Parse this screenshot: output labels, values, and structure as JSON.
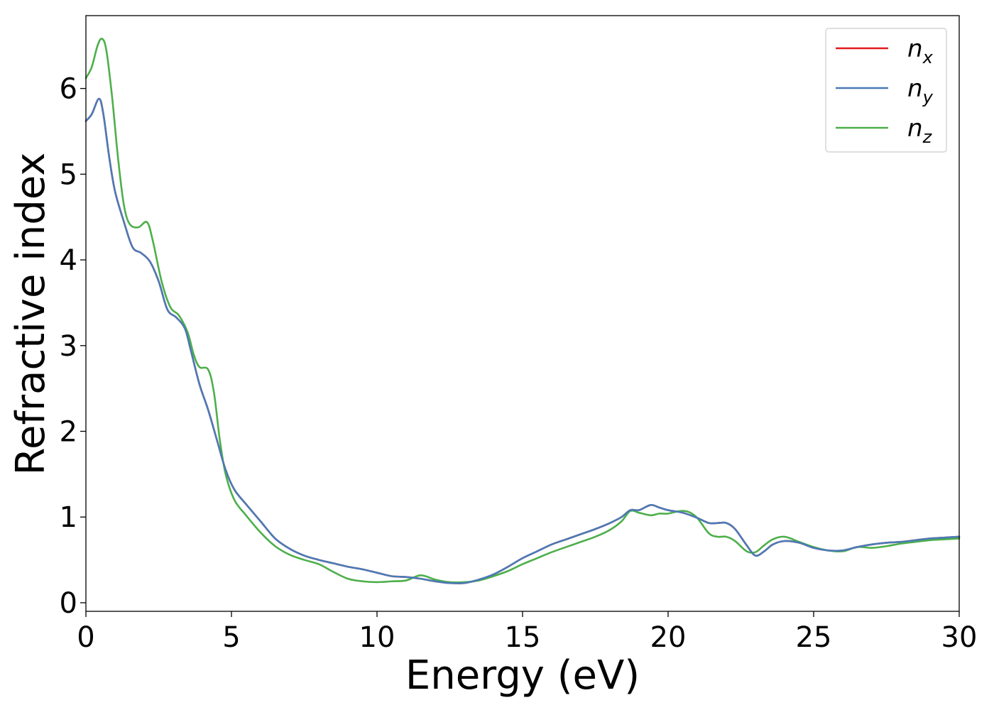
{
  "chart_data": {
    "type": "line",
    "xlabel": "Energy (eV)",
    "ylabel": "Refractive index",
    "xlim": [
      0,
      30
    ],
    "ylim": [
      -0.1,
      6.85
    ],
    "xticks": [
      0,
      5,
      10,
      15,
      20,
      25,
      30
    ],
    "yticks": [
      0,
      1,
      2,
      3,
      4,
      5,
      6
    ],
    "grid": false,
    "legend_position": "top-right",
    "series": [
      {
        "name": "n_x",
        "label_base": "n",
        "label_sub": "x",
        "color": "#e41a1c",
        "x": [
          0,
          0.2,
          0.45,
          0.6,
          0.8,
          1.0,
          1.3,
          1.6,
          1.9,
          2.2,
          2.5,
          2.8,
          3.1,
          3.4,
          3.6,
          3.9,
          4.2,
          4.5,
          4.8,
          5.1,
          5.5,
          6.0,
          6.5,
          7.0,
          7.5,
          8.0,
          8.5,
          9.0,
          9.5,
          10.0,
          10.5,
          11.0,
          11.5,
          12.0,
          12.5,
          13.0,
          13.5,
          14.0,
          14.5,
          15.0,
          15.5,
          16.0,
          16.5,
          17.0,
          17.5,
          18.0,
          18.4,
          18.7,
          19.0,
          19.4,
          19.7,
          20.0,
          20.5,
          21.0,
          21.4,
          21.7,
          22.0,
          22.3,
          22.7,
          23.0,
          23.3,
          23.6,
          24.0,
          24.5,
          25.0,
          25.5,
          26.0,
          26.5,
          27.0,
          27.5,
          28.0,
          28.5,
          29.0,
          29.5,
          30.0
        ],
        "y": [
          5.62,
          5.7,
          5.88,
          5.7,
          5.2,
          4.8,
          4.45,
          4.15,
          4.08,
          3.98,
          3.75,
          3.42,
          3.33,
          3.2,
          2.95,
          2.55,
          2.25,
          1.9,
          1.55,
          1.32,
          1.15,
          0.95,
          0.75,
          0.63,
          0.55,
          0.5,
          0.46,
          0.42,
          0.39,
          0.35,
          0.31,
          0.3,
          0.28,
          0.25,
          0.23,
          0.23,
          0.27,
          0.33,
          0.42,
          0.52,
          0.6,
          0.68,
          0.74,
          0.8,
          0.86,
          0.93,
          1.0,
          1.08,
          1.08,
          1.14,
          1.11,
          1.08,
          1.05,
          0.99,
          0.93,
          0.93,
          0.93,
          0.86,
          0.67,
          0.55,
          0.6,
          0.68,
          0.72,
          0.7,
          0.64,
          0.61,
          0.61,
          0.65,
          0.68,
          0.7,
          0.71,
          0.73,
          0.75,
          0.76,
          0.77
        ]
      },
      {
        "name": "n_y",
        "label_base": "n",
        "label_sub": "y",
        "color": "#4a7bb7",
        "x": [
          0,
          0.2,
          0.45,
          0.6,
          0.8,
          1.0,
          1.3,
          1.6,
          1.9,
          2.2,
          2.5,
          2.8,
          3.1,
          3.4,
          3.6,
          3.9,
          4.2,
          4.5,
          4.8,
          5.1,
          5.5,
          6.0,
          6.5,
          7.0,
          7.5,
          8.0,
          8.5,
          9.0,
          9.5,
          10.0,
          10.5,
          11.0,
          11.5,
          12.0,
          12.5,
          13.0,
          13.5,
          14.0,
          14.5,
          15.0,
          15.5,
          16.0,
          16.5,
          17.0,
          17.5,
          18.0,
          18.4,
          18.7,
          19.0,
          19.4,
          19.7,
          20.0,
          20.5,
          21.0,
          21.4,
          21.7,
          22.0,
          22.3,
          22.7,
          23.0,
          23.3,
          23.6,
          24.0,
          24.5,
          25.0,
          25.5,
          26.0,
          26.5,
          27.0,
          27.5,
          28.0,
          28.5,
          29.0,
          29.5,
          30.0
        ],
        "y": [
          5.62,
          5.7,
          5.88,
          5.7,
          5.2,
          4.8,
          4.45,
          4.15,
          4.08,
          3.98,
          3.75,
          3.42,
          3.33,
          3.2,
          2.95,
          2.55,
          2.25,
          1.9,
          1.55,
          1.32,
          1.15,
          0.95,
          0.75,
          0.63,
          0.55,
          0.5,
          0.46,
          0.42,
          0.39,
          0.35,
          0.31,
          0.3,
          0.28,
          0.25,
          0.23,
          0.23,
          0.27,
          0.33,
          0.42,
          0.52,
          0.6,
          0.68,
          0.74,
          0.8,
          0.86,
          0.93,
          1.0,
          1.08,
          1.08,
          1.14,
          1.11,
          1.08,
          1.05,
          0.99,
          0.93,
          0.93,
          0.93,
          0.86,
          0.67,
          0.55,
          0.6,
          0.68,
          0.72,
          0.7,
          0.64,
          0.61,
          0.61,
          0.65,
          0.68,
          0.7,
          0.71,
          0.73,
          0.75,
          0.76,
          0.77
        ]
      },
      {
        "name": "n_z",
        "label_base": "n",
        "label_sub": "z",
        "color": "#4daf4a",
        "x": [
          0,
          0.2,
          0.4,
          0.55,
          0.7,
          0.9,
          1.1,
          1.3,
          1.5,
          1.8,
          2.1,
          2.3,
          2.6,
          2.9,
          3.2,
          3.5,
          3.7,
          3.9,
          4.2,
          4.4,
          4.6,
          4.8,
          5.1,
          5.5,
          6.0,
          6.5,
          7.0,
          7.5,
          8.0,
          8.5,
          9.0,
          9.5,
          10.0,
          10.5,
          11.0,
          11.5,
          12.0,
          12.5,
          13.0,
          13.5,
          14.0,
          14.5,
          15.0,
          15.5,
          16.0,
          16.5,
          17.0,
          17.5,
          18.0,
          18.4,
          18.7,
          19.0,
          19.4,
          19.7,
          20.0,
          20.4,
          20.7,
          21.0,
          21.4,
          21.7,
          22.0,
          22.3,
          22.7,
          23.0,
          23.3,
          23.6,
          24.0,
          24.5,
          25.0,
          25.5,
          26.0,
          26.5,
          27.0,
          27.5,
          28.0,
          28.5,
          29.0,
          29.5,
          30.0
        ],
        "y": [
          6.12,
          6.25,
          6.5,
          6.58,
          6.45,
          5.9,
          5.2,
          4.65,
          4.42,
          4.38,
          4.44,
          4.22,
          3.75,
          3.45,
          3.35,
          3.15,
          2.9,
          2.75,
          2.72,
          2.45,
          1.9,
          1.5,
          1.2,
          1.02,
          0.82,
          0.66,
          0.56,
          0.5,
          0.45,
          0.36,
          0.28,
          0.25,
          0.24,
          0.25,
          0.26,
          0.32,
          0.27,
          0.24,
          0.24,
          0.26,
          0.31,
          0.37,
          0.45,
          0.52,
          0.59,
          0.65,
          0.71,
          0.77,
          0.85,
          0.95,
          1.07,
          1.05,
          1.02,
          1.04,
          1.04,
          1.07,
          1.06,
          0.99,
          0.81,
          0.77,
          0.77,
          0.72,
          0.6,
          0.59,
          0.67,
          0.74,
          0.77,
          0.71,
          0.65,
          0.61,
          0.6,
          0.65,
          0.64,
          0.66,
          0.69,
          0.71,
          0.73,
          0.74,
          0.75
        ]
      }
    ]
  }
}
